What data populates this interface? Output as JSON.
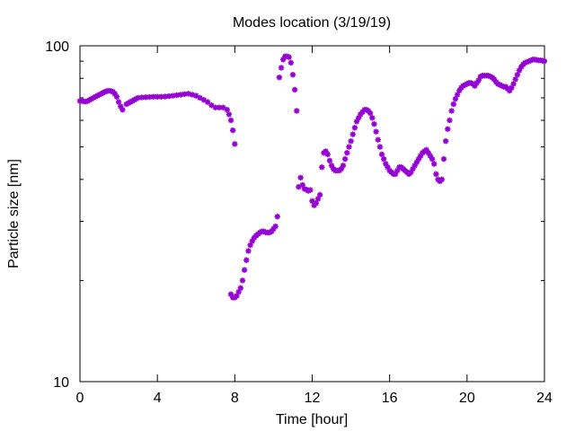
{
  "chart_data": {
    "type": "scatter",
    "title": "Modes location (3/19/19)",
    "xlabel": "Time [hour]",
    "ylabel": "Particle size [nm]",
    "xlim": [
      0,
      24
    ],
    "ylim": [
      10,
      100
    ],
    "yscale": "log",
    "x_ticks": [
      "0",
      "4",
      "8",
      "12",
      "16",
      "20",
      "24"
    ],
    "x_tick_values": [
      0,
      4,
      8,
      12,
      16,
      20,
      24
    ],
    "y_ticks": [
      "10",
      "100"
    ],
    "y_tick_values": [
      10,
      100
    ],
    "grid": false,
    "legend": "none",
    "marker_color": "#9400d3",
    "series": [
      {
        "points": [
          [
            0.0,
            68.5
          ],
          [
            0.1,
            68.5
          ],
          [
            0.2,
            68.3
          ],
          [
            0.3,
            68.2
          ],
          [
            0.4,
            68.5
          ],
          [
            0.5,
            69.0
          ],
          [
            0.6,
            69.5
          ],
          [
            0.7,
            70.0
          ],
          [
            0.8,
            70.5
          ],
          [
            0.9,
            71.0
          ],
          [
            1.0,
            71.5
          ],
          [
            1.1,
            72.0
          ],
          [
            1.2,
            72.5
          ],
          [
            1.3,
            73.0
          ],
          [
            1.4,
            73.3
          ],
          [
            1.5,
            73.5
          ],
          [
            1.6,
            73.3
          ],
          [
            1.7,
            73.0
          ],
          [
            1.8,
            72.0
          ],
          [
            1.9,
            70.5
          ],
          [
            2.0,
            68.0
          ],
          [
            2.1,
            66.0
          ],
          [
            2.2,
            64.5
          ],
          [
            2.4,
            67.0
          ],
          [
            2.5,
            67.5
          ],
          [
            2.6,
            68.0
          ],
          [
            2.7,
            68.5
          ],
          [
            2.8,
            69.0
          ],
          [
            2.9,
            69.5
          ],
          [
            3.0,
            70.0
          ],
          [
            3.2,
            70.2
          ],
          [
            3.4,
            70.3
          ],
          [
            3.6,
            70.4
          ],
          [
            3.8,
            70.5
          ],
          [
            4.0,
            70.5
          ],
          [
            4.2,
            70.5
          ],
          [
            4.4,
            70.6
          ],
          [
            4.6,
            70.8
          ],
          [
            4.8,
            71.0
          ],
          [
            5.0,
            71.3
          ],
          [
            5.2,
            71.5
          ],
          [
            5.4,
            71.8
          ],
          [
            5.6,
            72.0
          ],
          [
            5.8,
            71.5
          ],
          [
            6.0,
            71.0
          ],
          [
            6.2,
            70.0
          ],
          [
            6.4,
            69.0
          ],
          [
            6.6,
            68.0
          ],
          [
            6.8,
            66.5
          ],
          [
            7.0,
            65.5
          ],
          [
            7.2,
            65.5
          ],
          [
            7.4,
            65.5
          ],
          [
            7.6,
            64.5
          ],
          [
            7.7,
            62.5
          ],
          [
            7.8,
            60.0
          ],
          [
            7.9,
            56.0
          ],
          [
            8.0,
            51.0
          ],
          [
            7.8,
            18.2
          ],
          [
            7.9,
            17.8
          ],
          [
            8.0,
            17.8
          ],
          [
            8.1,
            18.0
          ],
          [
            8.2,
            18.5
          ],
          [
            8.3,
            19.0
          ],
          [
            8.4,
            20.0
          ],
          [
            8.5,
            21.5
          ],
          [
            8.6,
            23.0
          ],
          [
            8.7,
            24.5
          ],
          [
            8.8,
            25.5
          ],
          [
            8.9,
            26.2
          ],
          [
            9.0,
            26.8
          ],
          [
            9.1,
            27.2
          ],
          [
            9.2,
            27.5
          ],
          [
            9.3,
            27.8
          ],
          [
            9.4,
            28.0
          ],
          [
            9.5,
            28.0
          ],
          [
            9.6,
            27.8
          ],
          [
            9.7,
            27.8
          ],
          [
            9.8,
            27.8
          ],
          [
            9.9,
            28.0
          ],
          [
            10.0,
            28.5
          ],
          [
            10.1,
            29.0
          ],
          [
            10.2,
            31.0
          ],
          [
            10.3,
            80.5
          ],
          [
            10.4,
            86.0
          ],
          [
            10.5,
            91.0
          ],
          [
            10.6,
            93.0
          ],
          [
            10.7,
            93.0
          ],
          [
            10.8,
            92.5
          ],
          [
            10.9,
            89.0
          ],
          [
            11.0,
            82.0
          ],
          [
            11.1,
            74.0
          ],
          [
            11.2,
            64.0
          ],
          [
            11.3,
            38.0
          ],
          [
            11.4,
            40.5
          ],
          [
            11.5,
            38.5
          ],
          [
            11.6,
            37.5
          ],
          [
            11.7,
            37.3
          ],
          [
            11.8,
            37.0
          ],
          [
            11.9,
            37.2
          ],
          [
            12.0,
            34.5
          ],
          [
            12.1,
            33.5
          ],
          [
            12.2,
            34.0
          ],
          [
            12.3,
            35.0
          ],
          [
            12.4,
            36.0
          ],
          [
            12.5,
            43.5
          ],
          [
            12.6,
            48.0
          ],
          [
            12.7,
            48.5
          ],
          [
            12.8,
            47.5
          ],
          [
            12.9,
            45.5
          ],
          [
            13.0,
            44.0
          ],
          [
            13.1,
            43.0
          ],
          [
            13.2,
            42.5
          ],
          [
            13.3,
            42.5
          ],
          [
            13.4,
            42.5
          ],
          [
            13.5,
            43.0
          ],
          [
            13.6,
            44.0
          ],
          [
            13.7,
            46.0
          ],
          [
            13.8,
            48.0
          ],
          [
            13.9,
            50.0
          ],
          [
            14.0,
            52.0
          ],
          [
            14.1,
            54.5
          ],
          [
            14.2,
            57.0
          ],
          [
            14.3,
            59.5
          ],
          [
            14.4,
            61.0
          ],
          [
            14.5,
            62.5
          ],
          [
            14.6,
            63.5
          ],
          [
            14.7,
            64.5
          ],
          [
            14.8,
            64.5
          ],
          [
            14.9,
            64.0
          ],
          [
            15.0,
            63.0
          ],
          [
            15.1,
            61.0
          ],
          [
            15.2,
            58.5
          ],
          [
            15.3,
            55.5
          ],
          [
            15.4,
            52.5
          ],
          [
            15.5,
            50.0
          ],
          [
            15.6,
            47.5
          ],
          [
            15.7,
            46.0
          ],
          [
            15.8,
            44.5
          ],
          [
            15.9,
            43.5
          ],
          [
            16.0,
            42.5
          ],
          [
            16.1,
            42.0
          ],
          [
            16.2,
            41.5
          ],
          [
            16.3,
            41.5
          ],
          [
            16.4,
            42.5
          ],
          [
            16.5,
            43.5
          ],
          [
            16.6,
            43.5
          ],
          [
            16.7,
            43.0
          ],
          [
            16.8,
            42.5
          ],
          [
            16.9,
            42.0
          ],
          [
            17.0,
            41.5
          ],
          [
            17.1,
            42.0
          ],
          [
            17.2,
            43.0
          ],
          [
            17.3,
            44.0
          ],
          [
            17.4,
            45.0
          ],
          [
            17.5,
            46.0
          ],
          [
            17.6,
            47.0
          ],
          [
            17.7,
            48.0
          ],
          [
            17.8,
            48.5
          ],
          [
            17.9,
            49.0
          ],
          [
            18.0,
            48.0
          ],
          [
            18.1,
            47.0
          ],
          [
            18.2,
            46.0
          ],
          [
            18.3,
            44.5
          ],
          [
            18.4,
            41.5
          ],
          [
            18.5,
            40.0
          ],
          [
            18.6,
            39.5
          ],
          [
            18.7,
            40.0
          ],
          [
            18.8,
            46.0
          ],
          [
            18.9,
            52.0
          ],
          [
            19.0,
            56.5
          ],
          [
            19.1,
            60.0
          ],
          [
            19.2,
            64.0
          ],
          [
            19.3,
            67.0
          ],
          [
            19.4,
            69.5
          ],
          [
            19.5,
            71.5
          ],
          [
            19.6,
            73.5
          ],
          [
            19.7,
            75.0
          ],
          [
            19.8,
            76.0
          ],
          [
            19.9,
            76.5
          ],
          [
            20.0,
            77.0
          ],
          [
            20.1,
            77.5
          ],
          [
            20.2,
            77.5
          ],
          [
            20.3,
            77.0
          ],
          [
            20.4,
            76.0
          ],
          [
            20.5,
            77.5
          ],
          [
            20.6,
            79.0
          ],
          [
            20.7,
            81.0
          ],
          [
            20.8,
            81.5
          ],
          [
            20.9,
            81.5
          ],
          [
            21.0,
            81.5
          ],
          [
            21.1,
            81.5
          ],
          [
            21.2,
            81.0
          ],
          [
            21.3,
            80.5
          ],
          [
            21.4,
            79.5
          ],
          [
            21.5,
            78.0
          ],
          [
            21.6,
            77.0
          ],
          [
            21.7,
            76.5
          ],
          [
            21.8,
            76.0
          ],
          [
            21.9,
            75.5
          ],
          [
            22.0,
            75.5
          ],
          [
            22.1,
            74.5
          ],
          [
            22.2,
            73.5
          ],
          [
            22.3,
            75.0
          ],
          [
            22.4,
            77.0
          ],
          [
            22.5,
            79.5
          ],
          [
            22.6,
            82.0
          ],
          [
            22.7,
            84.5
          ],
          [
            22.8,
            86.5
          ],
          [
            22.9,
            88.0
          ],
          [
            23.0,
            89.0
          ],
          [
            23.1,
            89.5
          ],
          [
            23.2,
            90.0
          ],
          [
            23.3,
            90.5
          ],
          [
            23.4,
            91.0
          ],
          [
            23.5,
            91.0
          ],
          [
            23.6,
            90.8
          ],
          [
            23.7,
            90.5
          ],
          [
            23.8,
            90.5
          ],
          [
            23.9,
            90.3
          ],
          [
            24.0,
            90.0
          ]
        ]
      }
    ]
  }
}
